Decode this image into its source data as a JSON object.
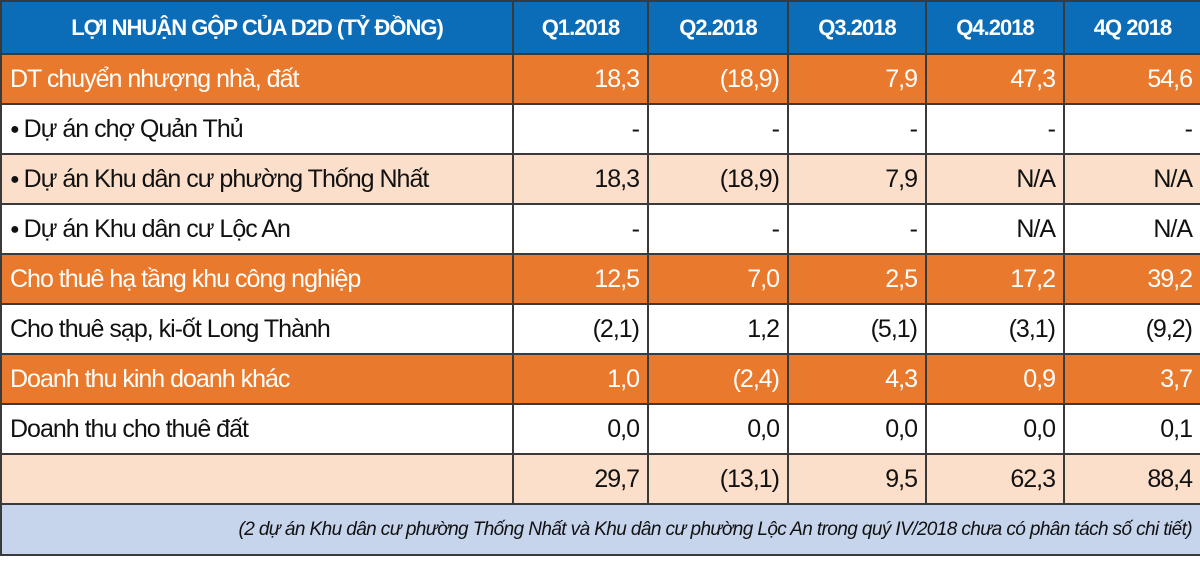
{
  "table": {
    "headers": [
      "LỢI NHUẬN GỘP CỦA D2D (TỶ ĐỒNG)",
      "Q1.2018",
      "Q2.2018",
      "Q3.2018",
      "Q4.2018",
      "4Q 2018"
    ],
    "rows": [
      {
        "label": "DT chuyển nhượng nhà, đất",
        "bullet": false,
        "style": "orange",
        "values": [
          "18,3",
          "(18,9)",
          "7,9",
          "47,3",
          "54,6"
        ]
      },
      {
        "label": "Dự án chợ Quản Thủ",
        "bullet": true,
        "style": "white",
        "values": [
          "-",
          "-",
          "-",
          "-",
          "-"
        ]
      },
      {
        "label": "Dự án Khu dân cư phường Thống Nhất",
        "bullet": true,
        "style": "peach",
        "values": [
          "18,3",
          "(18,9)",
          "7,9",
          "N/A",
          "N/A"
        ]
      },
      {
        "label": "Dự án Khu dân cư Lộc An",
        "bullet": true,
        "style": "white",
        "values": [
          "-",
          "-",
          "-",
          "N/A",
          "N/A"
        ]
      },
      {
        "label": "Cho thuê hạ tầng khu công nghiệp",
        "bullet": false,
        "style": "orange",
        "values": [
          "12,5",
          "7,0",
          "2,5",
          "17,2",
          "39,2"
        ]
      },
      {
        "label": "Cho thuê sạp, ki-ốt Long Thành",
        "bullet": false,
        "style": "white",
        "values": [
          "(2,1)",
          "1,2",
          "(5,1)",
          "(3,1)",
          "(9,2)"
        ]
      },
      {
        "label": "Doanh thu kinh doanh khác",
        "bullet": false,
        "style": "orange",
        "values": [
          "1,0",
          "(2,4)",
          "4,3",
          "0,9",
          "3,7"
        ]
      },
      {
        "label": "Doanh thu cho thuê đất",
        "bullet": false,
        "style": "white",
        "values": [
          "0,0",
          "0,0",
          "0,0",
          "0,0",
          "0,1"
        ]
      },
      {
        "label": "",
        "bullet": false,
        "style": "peach",
        "values": [
          "29,7",
          "(13,1)",
          "9,5",
          "62,3",
          "88,4"
        ]
      }
    ],
    "note": "(2 dự án Khu dân cư phường Thống Nhất và Khu dân cư phường Lộc An trong quý IV/2018 chưa có phân tách số chi tiết)"
  },
  "colors": {
    "header": "#0b6cb7",
    "highlight_row": "#e97a2d",
    "light_row": "#fbdfca",
    "note_bg": "#c6d4ec"
  }
}
